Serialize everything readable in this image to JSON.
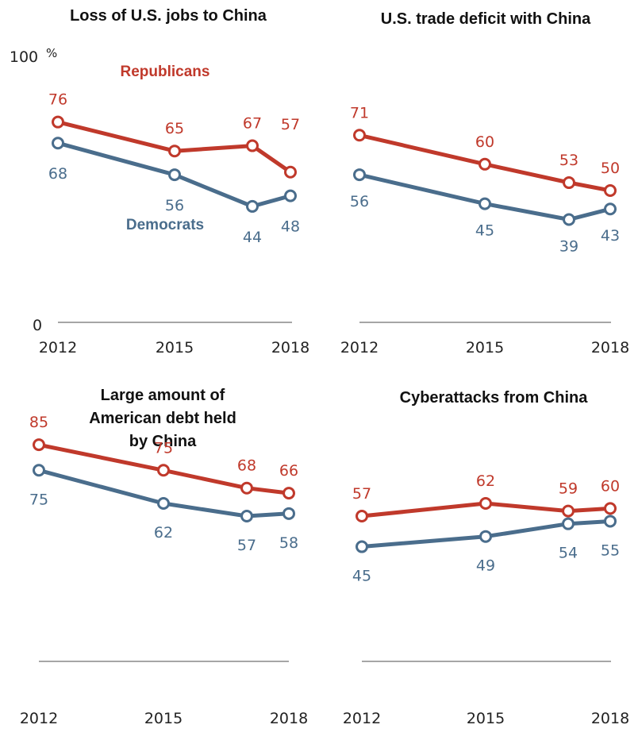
{
  "colors": {
    "republicans": "#c0392b",
    "democrats": "#4a6d8c"
  },
  "chart_data": [
    {
      "type": "line",
      "title": [
        "Loss of U.S. jobs to China"
      ],
      "x": [
        "2012",
        "2015",
        "2017",
        "2018"
      ],
      "xtick_labels": [
        "2012",
        "2015",
        "2018"
      ],
      "y_tick_labels": [
        "0",
        "100"
      ],
      "y_unit": "%",
      "ylim": [
        0,
        100
      ],
      "series": [
        {
          "name": "Republicans",
          "values": [
            76,
            65,
            67,
            57
          ]
        },
        {
          "name": "Democrats",
          "values": [
            68,
            56,
            44,
            48
          ]
        }
      ]
    },
    {
      "type": "line",
      "title": [
        "U.S. trade deficit with China"
      ],
      "x": [
        "2012",
        "2015",
        "2017",
        "2018"
      ],
      "xtick_labels": [
        "2012",
        "2015",
        "2018"
      ],
      "ylim": [
        0,
        100
      ],
      "series": [
        {
          "name": "Republicans",
          "values": [
            71,
            60,
            53,
            50
          ]
        },
        {
          "name": "Democrats",
          "values": [
            56,
            45,
            39,
            43
          ]
        }
      ]
    },
    {
      "type": "line",
      "title": [
        "Large amount of",
        "American debt held",
        "by China"
      ],
      "x": [
        "2012",
        "2015",
        "2017",
        "2018"
      ],
      "xtick_labels": [
        "2012",
        "2015",
        "2018"
      ],
      "ylim": [
        0,
        100
      ],
      "series": [
        {
          "name": "Republicans",
          "values": [
            85,
            75,
            68,
            66
          ]
        },
        {
          "name": "Democrats",
          "values": [
            75,
            62,
            57,
            58
          ]
        }
      ]
    },
    {
      "type": "line",
      "title": [
        "Cyberattacks from China"
      ],
      "x": [
        "2012",
        "2015",
        "2017",
        "2018"
      ],
      "xtick_labels": [
        "2012",
        "2015",
        "2018"
      ],
      "ylim": [
        0,
        100
      ],
      "series": [
        {
          "name": "Republicans",
          "values": [
            57,
            62,
            59,
            60
          ]
        },
        {
          "name": "Democrats",
          "values": [
            45,
            49,
            54,
            55
          ]
        }
      ]
    }
  ]
}
